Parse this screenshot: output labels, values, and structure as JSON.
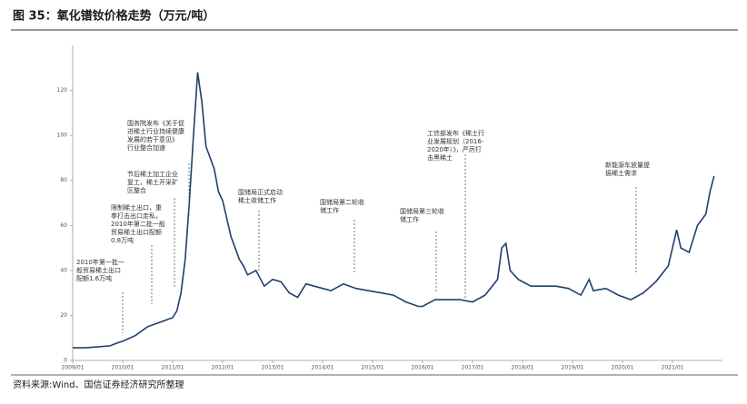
{
  "chart_data": {
    "type": "line",
    "title": "图 35：氧化镨钕价格走势（万元/吨）",
    "source": "资料来源:Wind、国信证券经济研究所整理",
    "x": [
      "2009/01",
      "2009/04",
      "2009/07",
      "2009/10",
      "2009/12",
      "2010/01",
      "2010/04",
      "2010/07",
      "2010/10",
      "2011/01",
      "2011/02",
      "2011/03",
      "2011/04",
      "2011/05",
      "2011/06",
      "2011/07",
      "2011/08",
      "2011/09",
      "2011/10",
      "2011/11",
      "2011/12",
      "2012/01",
      "2012/03",
      "2012/05",
      "2012/06",
      "2012/07",
      "2012/09",
      "2012/11",
      "2013/01",
      "2013/03",
      "2013/05",
      "2013/07",
      "2013/09",
      "2013/11",
      "2014/01",
      "2014/03",
      "2014/06",
      "2014/09",
      "2014/12",
      "2015/03",
      "2015/06",
      "2015/09",
      "2015/12",
      "2016/01",
      "2016/04",
      "2016/07",
      "2016/10",
      "2017/01",
      "2017/04",
      "2017/07",
      "2017/08",
      "2017/09",
      "2017/10",
      "2017/12",
      "2018/03",
      "2018/06",
      "2018/09",
      "2018/12",
      "2019/03",
      "2019/05",
      "2019/06",
      "2019/09",
      "2019/12",
      "2020/03",
      "2020/06",
      "2020/09",
      "2020/12",
      "2021/02",
      "2021/03",
      "2021/05",
      "2021/07",
      "2021/09",
      "2021/10",
      "2021/11"
    ],
    "series": [
      {
        "name": "氧化镨钕",
        "color": "#1f3f6e",
        "values": [
          5.6,
          5.6,
          6,
          6.5,
          8,
          8.5,
          11,
          15,
          17,
          19,
          22,
          30,
          45,
          70,
          100,
          128,
          115,
          95,
          90,
          85,
          75,
          71,
          55,
          45,
          42,
          38,
          40,
          33,
          36,
          35,
          30,
          28,
          34,
          33,
          32,
          31,
          34,
          32,
          31,
          30,
          29,
          26,
          24,
          24,
          27,
          27,
          27,
          26,
          29,
          36,
          50,
          52,
          40,
          36,
          33,
          33,
          33,
          32,
          29,
          36,
          31,
          32,
          29,
          27,
          30,
          35,
          42,
          58,
          50,
          48,
          60,
          65,
          75,
          82
        ]
      }
    ],
    "xlim": [
      "2009/01",
      "2022/01"
    ],
    "xticks": [
      "2009/01",
      "2010/01",
      "2011/01",
      "2012/01",
      "2013/01",
      "2014/01",
      "2015/01",
      "2016/01",
      "2017/01",
      "2018/01",
      "2019/01",
      "2020/01",
      "2021/01"
    ],
    "ylim": [
      0,
      140
    ],
    "yticks": [
      0,
      20,
      40,
      60,
      80,
      100,
      120
    ],
    "annotations": [
      [
        "2010年第一批一",
        "般贸易稀土出口",
        "配额1.6万吨"
      ],
      [
        "限制稀土出口，重",
        "拳打击出口走私，",
        "2010年第二批一般",
        "贸易稀土出口配额",
        "0.8万吨"
      ],
      [
        "节后稀土加工企业",
        "复工，稀土开采矿",
        "区整合"
      ],
      [
        "国务院发布《关于促",
        "进稀土行业持续健康",
        "发展的若干意见》",
        "行业整合加速"
      ],
      [
        "国储局正式启动",
        "稀土收储工作"
      ],
      [
        "国储局第二轮收",
        "储工作"
      ],
      [
        "国储局第三轮收",
        "储工作"
      ],
      [
        "工信部发布《稀土行",
        "业发展规划（2016-",
        "2020年）》，严厉打",
        "击黑稀土"
      ],
      [
        "新能源车放量提",
        "振稀土需求"
      ]
    ]
  }
}
